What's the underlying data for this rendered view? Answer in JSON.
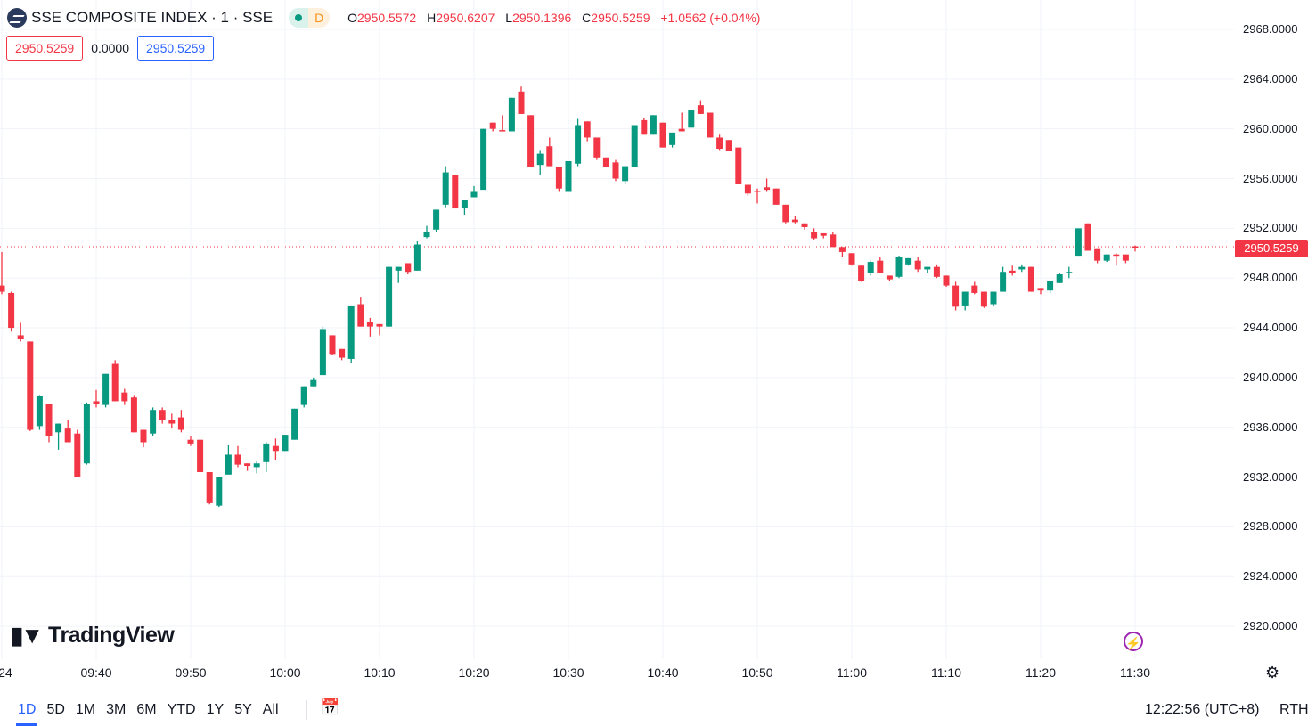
{
  "header": {
    "title": "SSE COMPOSITE INDEX · 1 · SSE",
    "badge_letter": "D",
    "ohlc": [
      {
        "k": "O",
        "v": "2950.5572"
      },
      {
        "k": "H",
        "v": "2950.6207"
      },
      {
        "k": "L",
        "v": "2950.1396"
      },
      {
        "k": "C",
        "v": "2950.5259"
      }
    ],
    "change": "+1.0562 (+0.04%)"
  },
  "row2": {
    "sell": "2950.5259",
    "spread": "0.0000",
    "buy": "2950.5259"
  },
  "brand": {
    "name": "TradingView",
    "mark": "17"
  },
  "toolbar": {
    "ranges": [
      "1D",
      "5D",
      "1M",
      "3M",
      "6M",
      "YTD",
      "1Y",
      "5Y",
      "All"
    ],
    "active": "1D",
    "clock": "12:22:56 (UTC+8)",
    "session": "RTH"
  },
  "colors": {
    "up": "#089981",
    "down": "#f23645",
    "accent": "#2962ff",
    "grid": "#f0f3fa"
  },
  "icons": {
    "logo": "sse-logo-icon",
    "calendar": "calendar-goto-icon",
    "settings": "settings-gear-icon",
    "lightning": "lightning-icon"
  },
  "chart_data": {
    "type": "candlestick",
    "interval": "1 minute",
    "y_ticks": [
      "2968.0000",
      "2964.0000",
      "2960.0000",
      "2956.0000",
      "2952.0000",
      "2948.0000",
      "2944.0000",
      "2940.0000",
      "2936.0000",
      "2932.0000",
      "2928.0000",
      "2924.0000",
      "2920.0000"
    ],
    "ylim": [
      2917.5,
      2970.2
    ],
    "x_ticks": [
      "24",
      "09:40",
      "09:50",
      "10:00",
      "10:10",
      "10:20",
      "10:30",
      "10:40",
      "10:50",
      "11:00",
      "11:10",
      "11:20",
      "11:30"
    ],
    "last_price": "2950.5259",
    "grid": true,
    "columns": [
      "time",
      "open",
      "high",
      "low",
      "close"
    ],
    "candles": [
      [
        "09:30",
        2947.4,
        2950.1,
        2946.7,
        2946.9
      ],
      [
        "09:31",
        2946.8,
        2946.9,
        2943.7,
        2944.0
      ],
      [
        "09:32",
        2943.4,
        2944.4,
        2942.9,
        2943.1
      ],
      [
        "09:33",
        2942.9,
        2942.9,
        2935.7,
        2935.8
      ],
      [
        "09:34",
        2936.1,
        2938.6,
        2935.8,
        2938.5
      ],
      [
        "09:35",
        2937.9,
        2937.9,
        2934.8,
        2935.3
      ],
      [
        "09:36",
        2935.6,
        2936.3,
        2934.2,
        2936.3
      ],
      [
        "09:37",
        2935.9,
        2936.6,
        2934.8,
        2934.8
      ],
      [
        "09:38",
        2935.5,
        2935.8,
        2932.0,
        2932.0
      ],
      [
        "09:39",
        2933.1,
        2938.0,
        2933.0,
        2937.9
      ],
      [
        "09:40",
        2938.1,
        2939.0,
        2937.6,
        2937.9
      ],
      [
        "09:41",
        2937.8,
        2940.3,
        2937.6,
        2940.3
      ],
      [
        "09:42",
        2941.1,
        2941.4,
        2938.1,
        2938.1
      ],
      [
        "09:43",
        2938.8,
        2939.1,
        2937.8,
        2938.1
      ],
      [
        "09:44",
        2938.4,
        2938.6,
        2935.6,
        2935.6
      ],
      [
        "09:45",
        2935.8,
        2935.8,
        2934.4,
        2934.8
      ],
      [
        "09:46",
        2935.5,
        2937.6,
        2935.3,
        2937.4
      ],
      [
        "09:47",
        2937.4,
        2937.6,
        2936.3,
        2936.6
      ],
      [
        "09:48",
        2936.6,
        2937.1,
        2935.9,
        2936.3
      ],
      [
        "09:49",
        2936.8,
        2937.4,
        2935.6,
        2935.8
      ],
      [
        "09:50",
        2935.0,
        2935.3,
        2934.5,
        2934.7
      ],
      [
        "09:51",
        2935.0,
        2935.0,
        2932.4,
        2932.4
      ],
      [
        "09:52",
        2932.4,
        2932.4,
        2929.8,
        2929.9
      ],
      [
        "09:53",
        2929.7,
        2932.0,
        2929.6,
        2932.0
      ],
      [
        "09:54",
        2932.2,
        2934.6,
        2932.2,
        2933.8
      ],
      [
        "09:55",
        2933.8,
        2934.5,
        2932.8,
        2933.0
      ],
      [
        "09:56",
        2933.1,
        2933.1,
        2932.5,
        2932.9
      ],
      [
        "09:57",
        2932.8,
        2933.3,
        2932.3,
        2933.1
      ],
      [
        "09:58",
        2933.2,
        2934.8,
        2932.4,
        2934.7
      ],
      [
        "09:59",
        2934.5,
        2935.1,
        2933.4,
        2934.1
      ],
      [
        "10:00",
        2934.1,
        2935.4,
        2934.1,
        2935.4
      ],
      [
        "10:01",
        2935.0,
        2937.5,
        2935.0,
        2937.5
      ],
      [
        "10:02",
        2937.8,
        2939.3,
        2937.6,
        2939.3
      ],
      [
        "10:03",
        2939.3,
        2940.0,
        2939.3,
        2939.8
      ],
      [
        "10:04",
        2940.2,
        2944.1,
        2940.2,
        2943.9
      ],
      [
        "10:05",
        2943.4,
        2943.4,
        2941.8,
        2941.9
      ],
      [
        "10:06",
        2942.3,
        2942.3,
        2941.4,
        2941.6
      ],
      [
        "10:07",
        2941.5,
        2945.8,
        2941.2,
        2945.8
      ],
      [
        "10:08",
        2945.9,
        2946.5,
        2944.1,
        2944.1
      ],
      [
        "10:09",
        2944.5,
        2944.8,
        2943.3,
        2944.1
      ],
      [
        "10:10",
        2944.3,
        2944.3,
        2943.4,
        2944.1
      ],
      [
        "10:11",
        2944.1,
        2948.9,
        2944.1,
        2948.9
      ],
      [
        "10:12",
        2948.6,
        2948.9,
        2947.6,
        2948.9
      ],
      [
        "10:13",
        2949.2,
        2949.2,
        2948.3,
        2948.5
      ],
      [
        "10:14",
        2948.6,
        2951.0,
        2948.6,
        2950.7
      ],
      [
        "10:15",
        2951.3,
        2952.2,
        2951.2,
        2951.7
      ],
      [
        "10:16",
        2951.9,
        2953.5,
        2951.7,
        2953.5
      ],
      [
        "10:17",
        2953.9,
        2957.0,
        2953.7,
        2956.5
      ],
      [
        "10:18",
        2956.3,
        2956.3,
        2953.6,
        2953.6
      ],
      [
        "10:19",
        2953.6,
        2954.3,
        2953.1,
        2954.3
      ],
      [
        "10:20",
        2954.5,
        2955.4,
        2954.5,
        2955.0
      ],
      [
        "10:21",
        2955.1,
        2960.0,
        2955.1,
        2960.0
      ],
      [
        "10:22",
        2960.5,
        2960.5,
        2959.8,
        2960.0
      ],
      [
        "10:23",
        2959.9,
        2961.1,
        2959.8,
        2959.8
      ],
      [
        "10:24",
        2959.8,
        2962.5,
        2959.8,
        2962.5
      ],
      [
        "10:25",
        2963.0,
        2963.4,
        2961.2,
        2961.2
      ],
      [
        "10:26",
        2961.1,
        2961.1,
        2956.9,
        2956.9
      ],
      [
        "10:27",
        2957.1,
        2958.3,
        2956.3,
        2958.0
      ],
      [
        "10:28",
        2958.6,
        2959.3,
        2957.0,
        2957.0
      ],
      [
        "10:29",
        2956.9,
        2956.9,
        2955.0,
        2955.2
      ],
      [
        "10:30",
        2955.0,
        2957.4,
        2955.0,
        2957.4
      ],
      [
        "10:31",
        2957.2,
        2960.8,
        2957.0,
        2960.3
      ],
      [
        "10:32",
        2960.6,
        2960.6,
        2959.0,
        2959.3
      ],
      [
        "10:33",
        2959.3,
        2959.3,
        2957.5,
        2957.7
      ],
      [
        "10:34",
        2957.7,
        2957.7,
        2956.9,
        2956.9
      ],
      [
        "10:35",
        2957.3,
        2957.5,
        2955.8,
        2956.0
      ],
      [
        "10:36",
        2955.8,
        2957.0,
        2955.6,
        2957.0
      ],
      [
        "10:37",
        2956.9,
        2960.3,
        2956.9,
        2960.3
      ],
      [
        "10:38",
        2960.7,
        2960.9,
        2959.6,
        2959.6
      ],
      [
        "10:39",
        2959.6,
        2961.1,
        2959.6,
        2961.1
      ],
      [
        "10:40",
        2960.5,
        2960.5,
        2958.5,
        2958.5
      ],
      [
        "10:41",
        2958.7,
        2959.7,
        2958.5,
        2959.7
      ],
      [
        "10:42",
        2960.0,
        2961.3,
        2959.8,
        2959.8
      ],
      [
        "10:43",
        2960.1,
        2961.5,
        2960.1,
        2961.5
      ],
      [
        "10:44",
        2961.9,
        2962.3,
        2961.2,
        2961.2
      ],
      [
        "10:45",
        2961.3,
        2961.3,
        2959.3,
        2959.3
      ],
      [
        "10:46",
        2959.3,
        2959.6,
        2958.3,
        2958.4
      ],
      [
        "10:47",
        2959.1,
        2959.1,
        2958.2,
        2958.2
      ],
      [
        "10:48",
        2958.5,
        2958.5,
        2955.6,
        2955.6
      ],
      [
        "10:49",
        2955.5,
        2955.5,
        2954.6,
        2954.8
      ],
      [
        "10:50",
        2955.0,
        2955.2,
        2954.0,
        2954.9
      ],
      [
        "10:51",
        2955.3,
        2956.0,
        2955.0,
        2955.1
      ],
      [
        "10:52",
        2955.2,
        2955.2,
        2953.9,
        2953.9
      ],
      [
        "10:53",
        2953.9,
        2953.9,
        2952.4,
        2952.5
      ],
      [
        "10:54",
        2952.7,
        2953.0,
        2952.4,
        2952.5
      ],
      [
        "10:55",
        2952.4,
        2952.4,
        2951.9,
        2952.1
      ],
      [
        "10:56",
        2951.7,
        2952.0,
        2951.1,
        2951.2
      ],
      [
        "10:57",
        2951.6,
        2951.6,
        2951.2,
        2951.4
      ],
      [
        "10:58",
        2951.5,
        2951.7,
        2950.5,
        2950.5
      ],
      [
        "10:59",
        2950.5,
        2950.5,
        2949.7,
        2950.1
      ],
      [
        "11:00",
        2950.0,
        2950.0,
        2949.0,
        2949.1
      ],
      [
        "11:01",
        2949.0,
        2949.0,
        2947.7,
        2947.8
      ],
      [
        "11:02",
        2948.4,
        2949.4,
        2948.2,
        2949.3
      ],
      [
        "11:03",
        2949.4,
        2949.7,
        2948.4,
        2948.4
      ],
      [
        "11:04",
        2948.2,
        2948.2,
        2947.8,
        2947.9
      ],
      [
        "11:05",
        2948.1,
        2949.8,
        2948.0,
        2949.7
      ],
      [
        "11:06",
        2949.1,
        2949.6,
        2949.0,
        2949.6
      ],
      [
        "11:07",
        2949.4,
        2949.7,
        2948.5,
        2948.7
      ],
      [
        "11:08",
        2948.7,
        2948.9,
        2948.4,
        2948.9
      ],
      [
        "11:09",
        2948.9,
        2949.1,
        2948.0,
        2948.1
      ],
      [
        "11:10",
        2948.2,
        2948.2,
        2947.3,
        2947.4
      ],
      [
        "11:11",
        2947.4,
        2947.7,
        2945.4,
        2945.7
      ],
      [
        "11:12",
        2945.8,
        2946.9,
        2945.4,
        2946.9
      ],
      [
        "11:13",
        2947.4,
        2947.7,
        2946.7,
        2946.8
      ],
      [
        "11:14",
        2946.9,
        2946.9,
        2945.6,
        2945.7
      ],
      [
        "11:15",
        2945.9,
        2946.9,
        2945.7,
        2946.9
      ],
      [
        "11:16",
        2946.9,
        2948.9,
        2946.9,
        2948.5
      ],
      [
        "11:17",
        2948.6,
        2949.0,
        2948.2,
        2948.4
      ],
      [
        "11:18",
        2948.7,
        2949.1,
        2948.5,
        2948.9
      ],
      [
        "11:19",
        2948.9,
        2948.9,
        2946.9,
        2946.9
      ],
      [
        "11:20",
        2947.2,
        2947.2,
        2946.7,
        2947.0
      ],
      [
        "11:21",
        2947.0,
        2947.8,
        2946.8,
        2947.8
      ],
      [
        "11:22",
        2947.6,
        2948.4,
        2947.6,
        2948.3
      ],
      [
        "11:23",
        2948.4,
        2948.9,
        2948.0,
        2948.5
      ],
      [
        "11:24",
        2949.8,
        2952.0,
        2949.8,
        2952.0
      ],
      [
        "11:25",
        2952.4,
        2952.4,
        2950.2,
        2950.2
      ],
      [
        "11:26",
        2950.4,
        2950.4,
        2949.2,
        2949.4
      ],
      [
        "11:27",
        2949.4,
        2949.9,
        2949.3,
        2949.9
      ],
      [
        "11:28",
        2949.9,
        2950.0,
        2949.0,
        2949.8
      ],
      [
        "11:29",
        2949.9,
        2949.9,
        2949.2,
        2949.4
      ],
      [
        "11:30",
        2950.5572,
        2950.6207,
        2950.1396,
        2950.5259
      ]
    ]
  }
}
